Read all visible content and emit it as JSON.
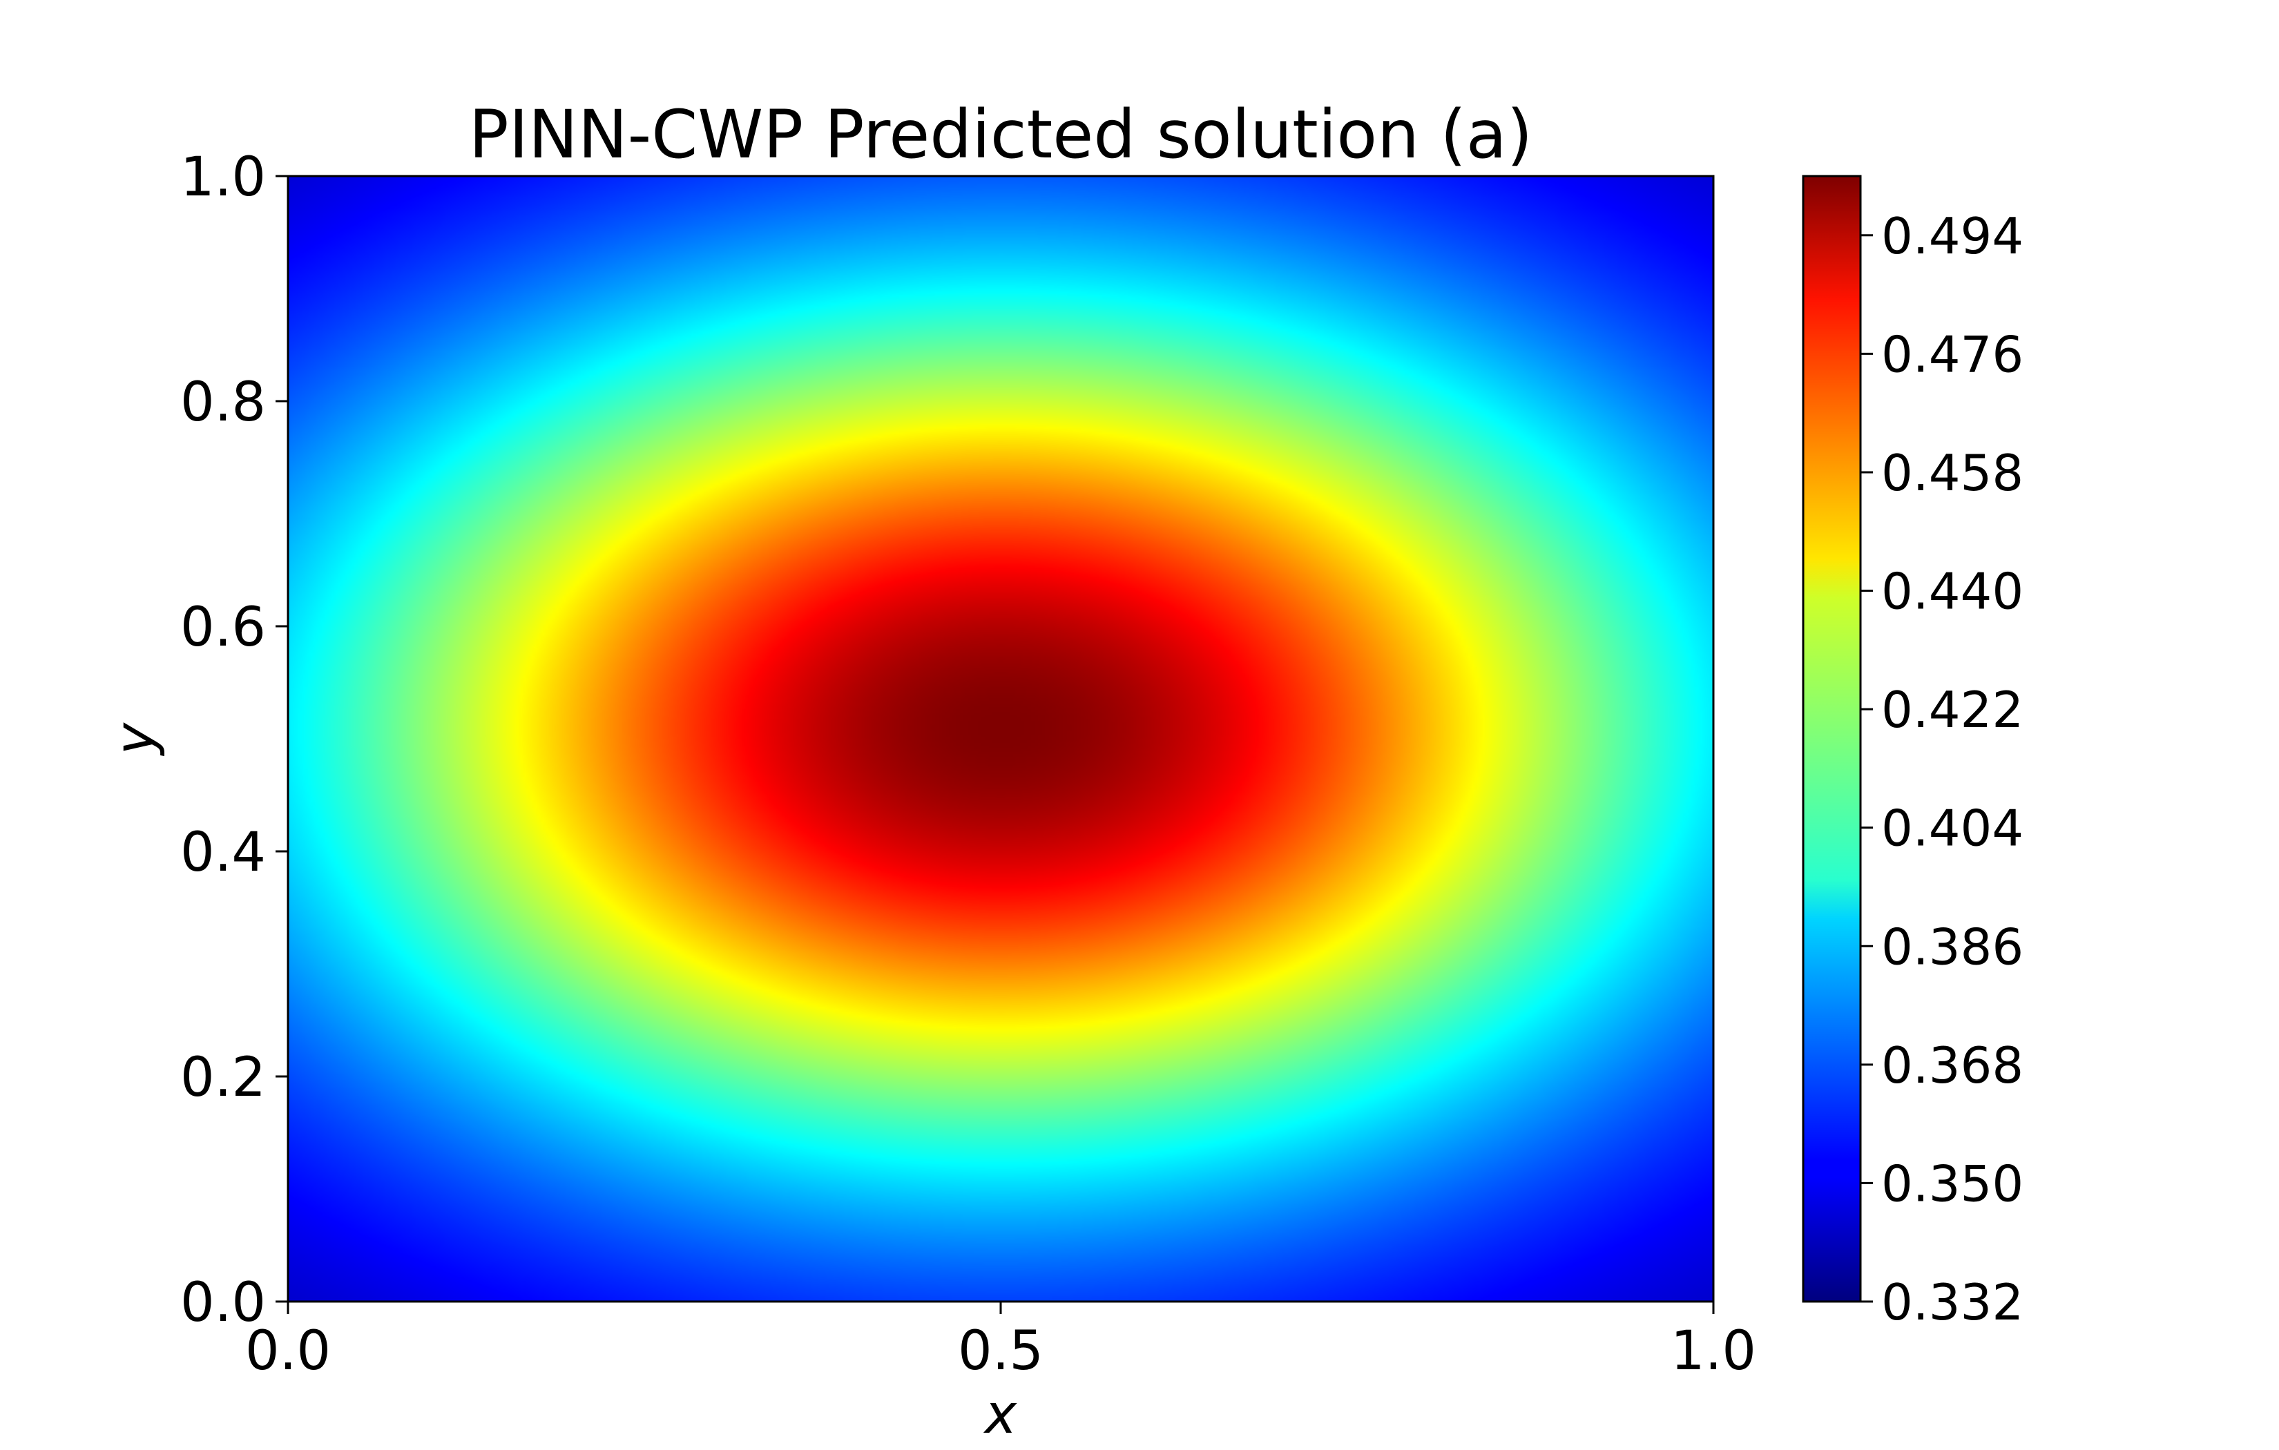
{
  "chart_data": {
    "type": "heatmap",
    "title": "PINN-CWP Predicted solution (a)",
    "xlabel": "x",
    "ylabel": "y",
    "xlim": [
      0.0,
      1.0
    ],
    "ylim": [
      0.0,
      1.0
    ],
    "x_ticks": [
      "0.0",
      "0.5",
      "1.0"
    ],
    "y_ticks": [
      "0.0",
      "0.2",
      "0.4",
      "0.6",
      "0.8",
      "1.0"
    ],
    "colormap": "jet",
    "colorbar": {
      "range": [
        0.332,
        0.503
      ],
      "ticks": [
        0.332,
        0.35,
        0.368,
        0.386,
        0.404,
        0.422,
        0.44,
        0.458,
        0.476,
        0.494
      ],
      "tick_labels": [
        "0.332",
        "0.350",
        "0.368",
        "0.386",
        "0.404",
        "0.422",
        "0.440",
        "0.458",
        "0.476",
        "0.494"
      ]
    },
    "field": {
      "peak": {
        "x": 0.5,
        "y": 0.51,
        "value": 0.503
      },
      "corner_value": 0.335,
      "edge_midpoint_value": 0.4,
      "shape": "smooth single maximum near the center, decreasing radially toward the edges and corners; contours are ellipses wider in x than in y"
    },
    "grid": false
  }
}
